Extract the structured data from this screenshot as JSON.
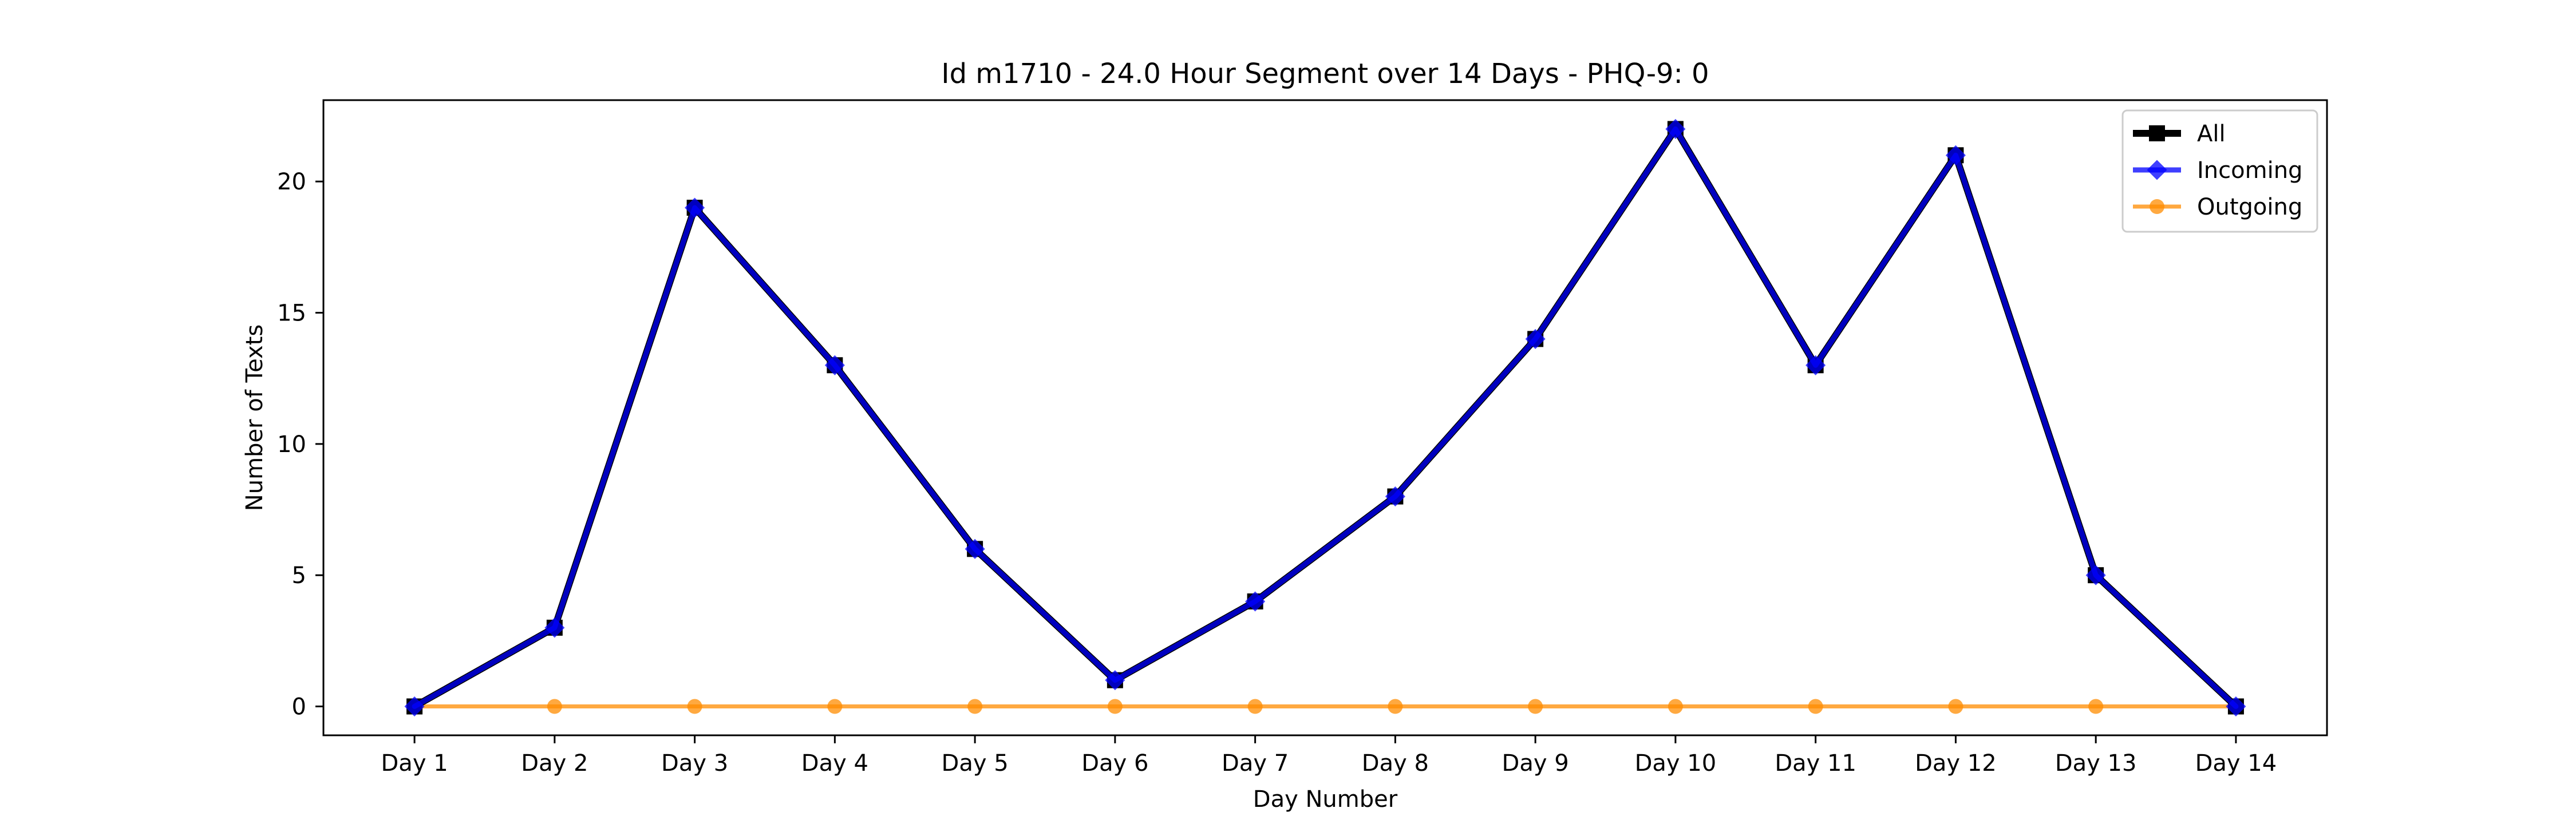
{
  "chart_data": {
    "type": "line",
    "title": "Id m1710 - 24.0 Hour Segment over 14 Days - PHQ-9: 0",
    "xlabel": "Day Number",
    "ylabel": "Number of Texts",
    "categories": [
      "Day 1",
      "Day 2",
      "Day 3",
      "Day 4",
      "Day 5",
      "Day 6",
      "Day 7",
      "Day 8",
      "Day 9",
      "Day 10",
      "Day 11",
      "Day 12",
      "Day 13",
      "Day 14"
    ],
    "ylim": [
      -1.1,
      23.1
    ],
    "yticks": [
      0,
      5,
      10,
      15,
      20
    ],
    "grid": false,
    "legend_position": "upper right",
    "series": [
      {
        "name": "All",
        "color": "#000000",
        "marker": "square",
        "values": [
          0,
          3,
          19,
          13,
          6,
          1,
          4,
          8,
          14,
          22,
          13,
          21,
          5,
          0
        ]
      },
      {
        "name": "Incoming",
        "color": "#0000ff",
        "marker": "diamond",
        "values": [
          0,
          3,
          19,
          13,
          6,
          1,
          4,
          8,
          14,
          22,
          13,
          21,
          5,
          0
        ]
      },
      {
        "name": "Outgoing",
        "color": "#ff8c00",
        "marker": "circle",
        "values": [
          0,
          0,
          0,
          0,
          0,
          0,
          0,
          0,
          0,
          0,
          0,
          0,
          0,
          0
        ]
      }
    ]
  }
}
